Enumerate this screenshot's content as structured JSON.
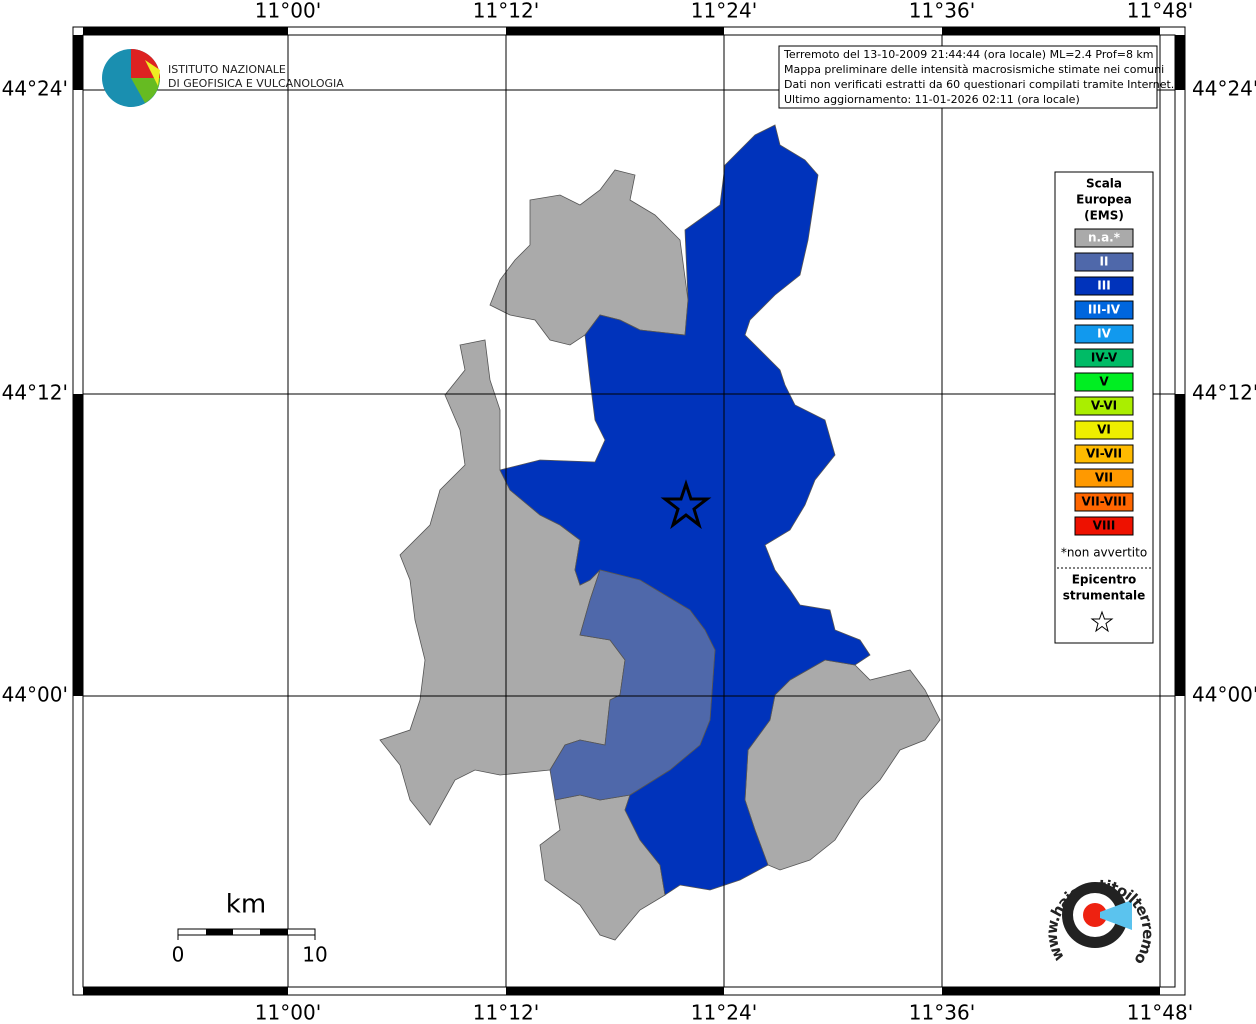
{
  "map": {
    "lon_labels": [
      "11°00'",
      "11°12'",
      "11°24'",
      "11°36'",
      "11°48'"
    ],
    "lat_labels": [
      "44°24'",
      "44°12'",
      "44°00'"
    ],
    "info": [
      "Terremoto del 13-10-2009 21:44:44 (ora locale) ML=2.4 Prof=8 km",
      "Mappa preliminare delle intensità macrosismiche stimate nei comuni",
      "Dati non verificati estratti da 60 questionari compilati tramite Internet.",
      "Ultimo aggiornamento: 11-01-2026 02:11 (ora locale)"
    ],
    "logo": [
      "ISTITUTO NAZIONALE",
      "DI GEOFISICA E VULCANOLOGIA"
    ],
    "legend": {
      "title": [
        "Scala",
        "Europea",
        "(EMS)"
      ],
      "items": [
        {
          "label": "n.a.*",
          "color": "#aaaaaa"
        },
        {
          "label": "II",
          "color": "#4f68aa"
        },
        {
          "label": "III",
          "color": "#0033bb"
        },
        {
          "label": "III-IV",
          "color": "#0066dd"
        },
        {
          "label": "IV",
          "color": "#1199ee"
        },
        {
          "label": "IV-V",
          "color": "#00bb66"
        },
        {
          "label": "V",
          "color": "#00ee22"
        },
        {
          "label": "V-VI",
          "color": "#aaee00"
        },
        {
          "label": "VI",
          "color": "#eeee00"
        },
        {
          "label": "VI-VII",
          "color": "#ffbb00"
        },
        {
          "label": "VII",
          "color": "#ff9900"
        },
        {
          "label": "VII-VIII",
          "color": "#ff6600"
        },
        {
          "label": "VIII",
          "color": "#ee1100"
        }
      ],
      "note": "*non avvertito",
      "epicenter": [
        "Epicentro",
        "strumentale"
      ]
    },
    "scale": {
      "unit": "km",
      "labels": [
        "0",
        "10"
      ]
    },
    "brand": "www.haisentitoilterremoto.it"
  }
}
